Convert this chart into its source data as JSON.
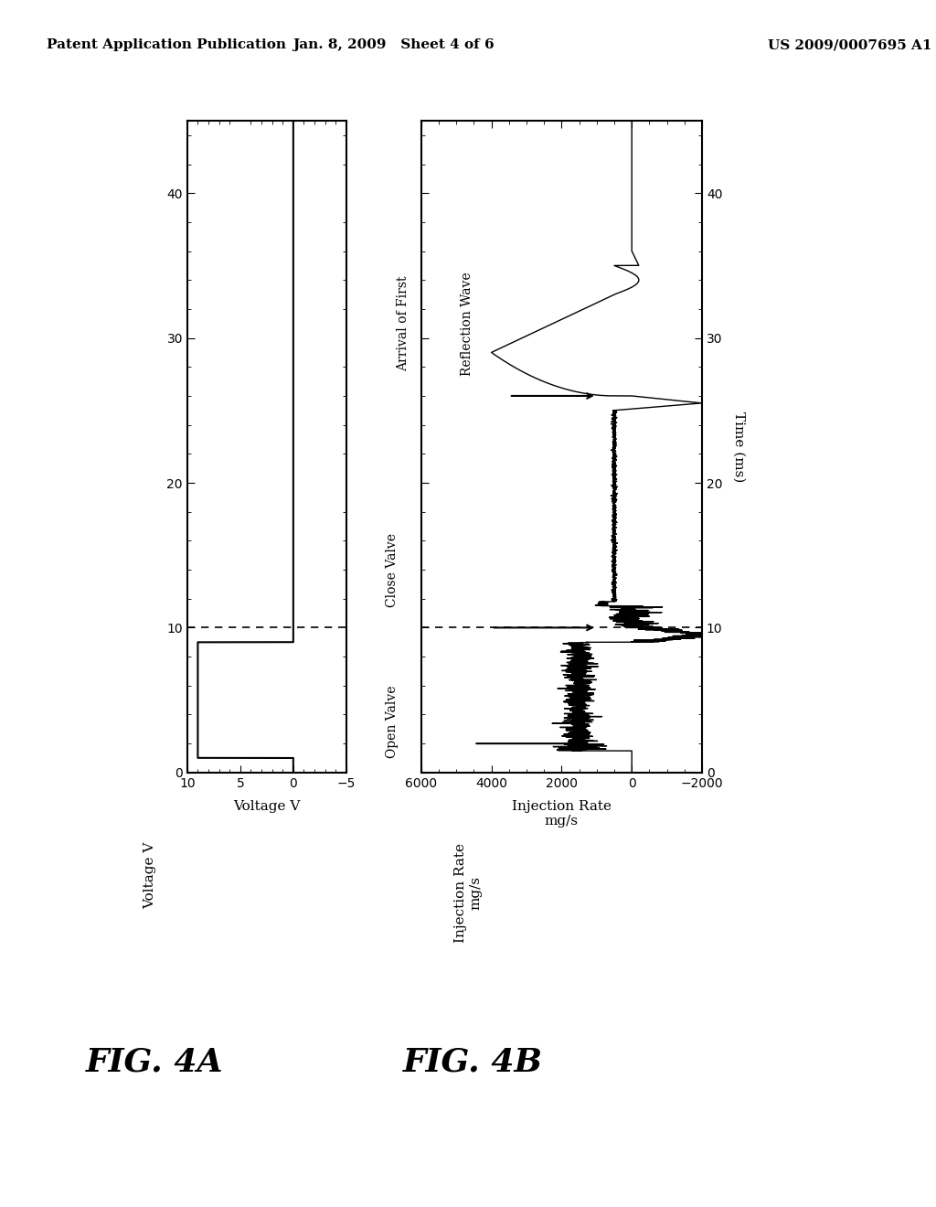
{
  "header_left": "Patent Application Publication",
  "header_mid": "Jan. 8, 2009   Sheet 4 of 6",
  "header_right": "US 2009/0007695 A1",
  "fig4a_label": "FIG. 4A",
  "fig4b_label": "FIG. 4B",
  "ylabel_4a": "Voltage V",
  "ylabel_4b_line1": "Injection Rate",
  "ylabel_4b_line2": "mg/s",
  "xlabel_shared": "Time (ms)",
  "yticks_4a": [
    10,
    5,
    0,
    -5
  ],
  "yticks_4b": [
    6000,
    4000,
    2000,
    0,
    -2000
  ],
  "xticks_time": [
    0,
    10,
    20,
    30,
    40
  ],
  "xlim_4a": [
    10,
    -5
  ],
  "xlim_4b": [
    6000,
    -2000
  ],
  "ylim_time": [
    0,
    45
  ],
  "bg_color": "#ffffff",
  "annotation_open_valve": "Open Valve",
  "annotation_close_valve": "Close Valve",
  "annotation_reflection_1": "Arrival of First",
  "annotation_reflection_2": "Reflection Wave"
}
